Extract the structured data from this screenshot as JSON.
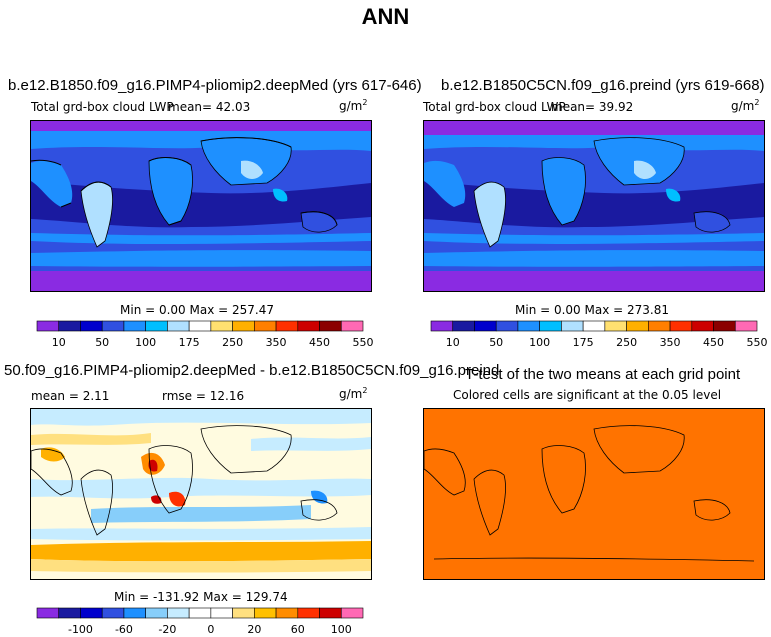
{
  "page": {
    "title": "ANN"
  },
  "colors": {
    "lwp_scale": [
      "#8a2be2",
      "#1a1aa0",
      "#0000cd",
      "#3050e0",
      "#1e90ff",
      "#00bfff",
      "#b0e0ff",
      "#ffffff",
      "#ffe070",
      "#ffb000",
      "#ff7f00",
      "#ff3000",
      "#cd0000",
      "#8b0000",
      "#ff69b4"
    ],
    "diff_scale": [
      "#8a2be2",
      "#1a1aa0",
      "#0000cd",
      "#3050e0",
      "#1e90ff",
      "#87cefa",
      "#c6ecff",
      "#ffffff",
      "#ffffff",
      "#ffe080",
      "#ffc000",
      "#ff8c00",
      "#ff3000",
      "#cd0000",
      "#ff69b4"
    ],
    "ttest_fill": "#ff7300"
  },
  "panels": {
    "p1": {
      "title": "b.e12.B1850.f09_g16.PIMP4-pliomip2.deepMed (yrs 617-646)",
      "left_label": "Total grd-box cloud LWP",
      "mean_text": "mean=  42.03",
      "units": "g/m",
      "units_exp": "2",
      "minmax": "Min =    0.00 Max = 257.47"
    },
    "p2": {
      "title": "b.e12.B1850C5CN.f09_g16.preind (yrs 619-668)",
      "left_label": "Total grd-box cloud LWP",
      "mean_text": "mean=  39.92",
      "units": "g/m",
      "units_exp": "2",
      "minmax": "Min =    0.00 Max = 273.81"
    },
    "p3": {
      "title": "50.f09_g16.PIMP4-pliomip2.deepMed - b.e12.B1850C5CN.f09_g16.preind",
      "mean_text": "mean =   2.11",
      "rmse_text": "rmse =  12.16",
      "units": "g/m",
      "units_exp": "2",
      "minmax": "Min = -131.92 Max = 129.74"
    },
    "p4": {
      "title": "T-test of the two means at each grid point",
      "subtitle": "Colored cells are significant at the 0.05 level"
    }
  },
  "chart_data": [
    {
      "type": "heatmap",
      "title": "b.e12.B1850.f09_g16.PIMP4-pliomip2.deepMed (yrs 617-646)",
      "variable": "Total grd-box cloud LWP",
      "units": "g/m2",
      "mean": 42.03,
      "min": 0.0,
      "max": 257.47,
      "colorbar_ticks": [
        "10",
        "50",
        "100",
        "175",
        "250",
        "350",
        "450",
        "550"
      ]
    },
    {
      "type": "heatmap",
      "title": "b.e12.B1850C5CN.f09_g16.preind (yrs 619-668)",
      "variable": "Total grd-box cloud LWP",
      "units": "g/m2",
      "mean": 39.92,
      "min": 0.0,
      "max": 273.81,
      "colorbar_ticks": [
        "10",
        "50",
        "100",
        "175",
        "250",
        "350",
        "450",
        "550"
      ]
    },
    {
      "type": "heatmap",
      "title": "50.f09_g16.PIMP4-pliomip2.deepMed - b.e12.B1850C5CN.f09_g16.preind",
      "units": "g/m2",
      "mean": 2.11,
      "rmse": 12.16,
      "min": -131.92,
      "max": 129.74,
      "colorbar_ticks": [
        "-100",
        "-60",
        "-20",
        "0",
        "20",
        "60",
        "100"
      ]
    },
    {
      "type": "heatmap",
      "title": "T-test of the two means at each grid point",
      "subtitle": "Colored cells are significant at the 0.05 level"
    }
  ]
}
